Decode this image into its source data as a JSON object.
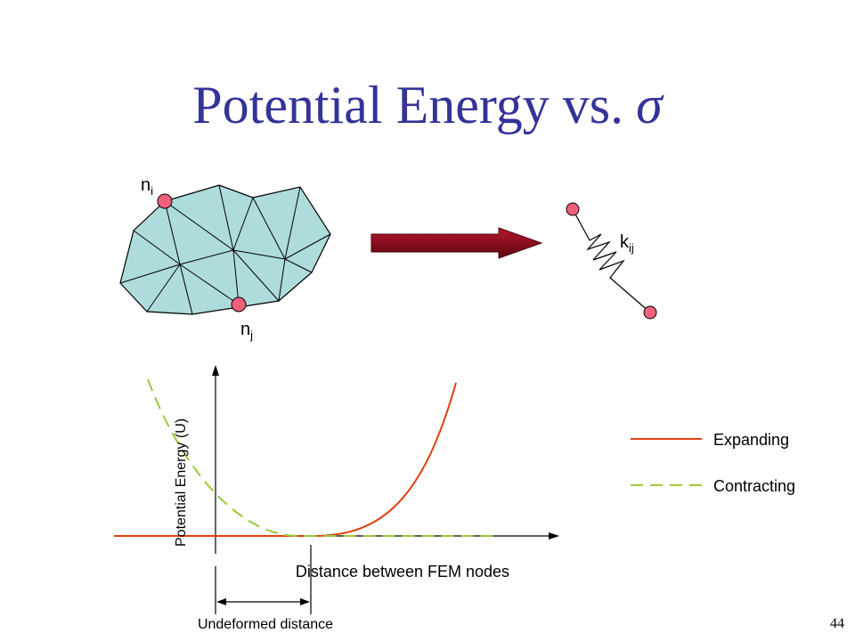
{
  "slide": {
    "title": "Potential Energy vs.",
    "title_symbol": "σ",
    "page_number": "44"
  },
  "mesh": {
    "node_i": {
      "main": "n",
      "sub": "i"
    },
    "node_j": {
      "main": "n",
      "sub": "j"
    }
  },
  "spring": {
    "label": {
      "main": "k",
      "sub": "ij"
    }
  },
  "plot": {
    "ylabel": "Potential Energy (U)",
    "xlabel": "Distance between FEM nodes",
    "undeformed_label": "Undeformed distance",
    "legend": [
      {
        "name": "Expanding",
        "style": "solid",
        "color": "#e04010"
      },
      {
        "name": "Contracting",
        "style": "dashed",
        "color": "#99cc33"
      }
    ]
  },
  "colors": {
    "title": "#333399",
    "mesh_fill": "#aedcdc",
    "node": "#f0607a",
    "arrow": "#8b0d1e"
  }
}
